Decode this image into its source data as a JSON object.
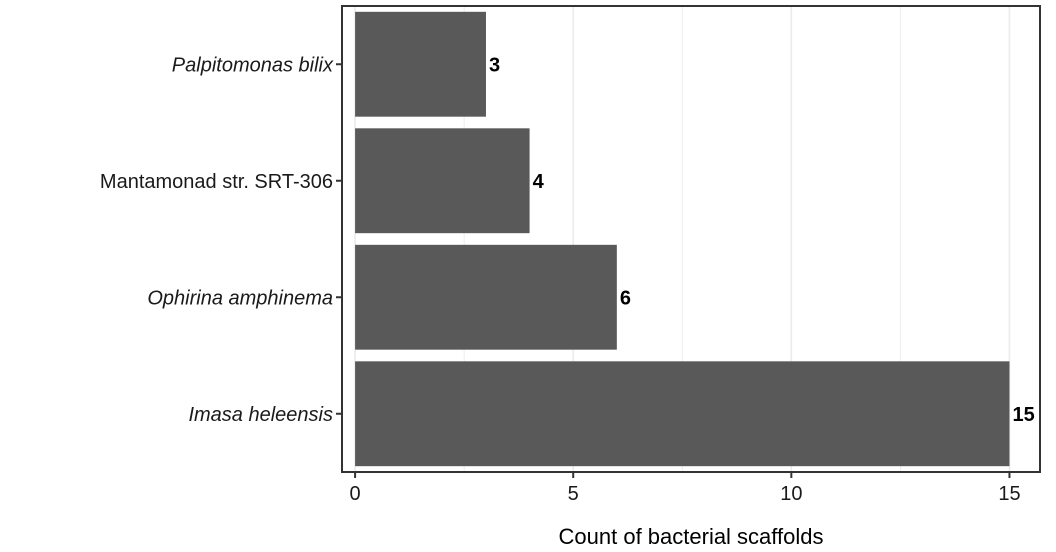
{
  "chart_data": {
    "type": "bar",
    "orientation": "horizontal",
    "categories": [
      "Palpitomonas bilix",
      "Mantamonad str. SRT-306",
      "Ophirina amphinema",
      "Imasa heleensis"
    ],
    "category_italic": [
      true,
      false,
      true,
      true
    ],
    "values": [
      3,
      4,
      6,
      15
    ],
    "data_labels": [
      "3",
      "4",
      "6",
      "15"
    ],
    "xlabel": "Count of bacterial scaffolds",
    "ylabel": "",
    "xlim": [
      -0.3,
      15.7
    ],
    "x_ticks": [
      0,
      5,
      10,
      15
    ],
    "x_tick_labels": [
      "0",
      "5",
      "10",
      "15"
    ],
    "grid": "vertical major and minor",
    "bar_color": "#595959",
    "grid_color": "#ebebeb",
    "legend": "none"
  }
}
